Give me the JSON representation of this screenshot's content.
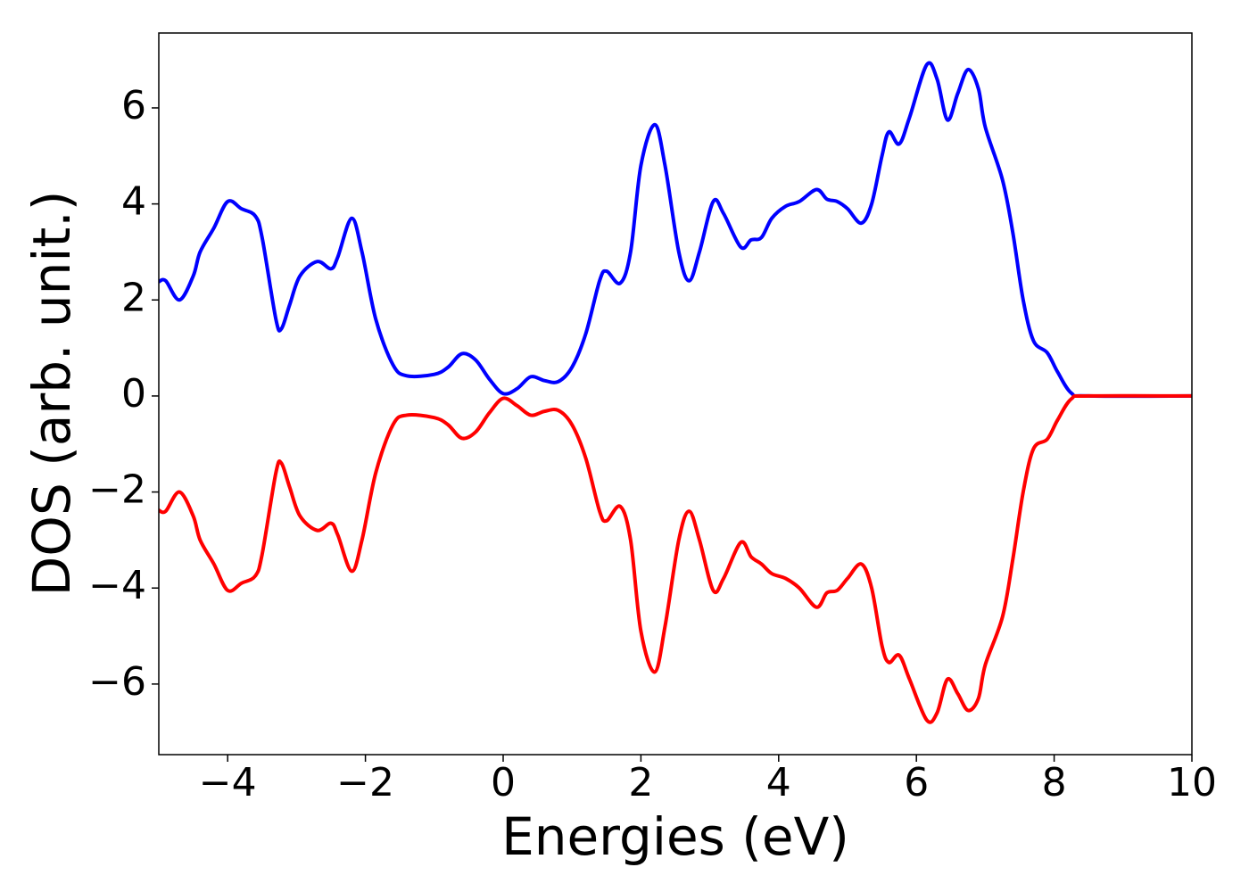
{
  "chart_data": {
    "type": "line",
    "xlabel": "Energies (eV)",
    "ylabel": "DOS (arb. unit.)",
    "x": [
      -5,
      -4.9,
      -4.7,
      -4.5,
      -4.4,
      -4.2,
      -4,
      -3.8,
      -3.6,
      -3.5,
      -3.3,
      -3.22,
      -3.1,
      -2.95,
      -2.7,
      -2.5,
      -2.4,
      -2.2,
      -2.05,
      -1.85,
      -1.6,
      -1.4,
      -1,
      -0.8,
      -0.6,
      -0.4,
      -0.2,
      0,
      0.2,
      0.4,
      0.6,
      0.8,
      1,
      1.2,
      1.4,
      1.5,
      1.7,
      1.85,
      2,
      2.2,
      2.35,
      2.55,
      2.7,
      2.85,
      3.05,
      3.2,
      3.45,
      3.6,
      3.75,
      3.9,
      4.1,
      4.3,
      4.55,
      4.7,
      4.85,
      5,
      5.2,
      5.35,
      5.5,
      5.6,
      5.75,
      5.9,
      6.15,
      6.3,
      6.45,
      6.6,
      6.75,
      6.9,
      7,
      7.25,
      7.4,
      7.55,
      7.7,
      7.9,
      8.05,
      8.25,
      8.5,
      10
    ],
    "series": [
      {
        "color": "#0000ff",
        "values": [
          2.38,
          2.4,
          2.0,
          2.5,
          3.0,
          3.5,
          4.05,
          3.9,
          3.75,
          3.3,
          1.6,
          1.4,
          1.9,
          2.5,
          2.8,
          2.65,
          2.9,
          3.7,
          3.0,
          1.6,
          0.65,
          0.42,
          0.45,
          0.6,
          0.88,
          0.75,
          0.35,
          0.05,
          0.15,
          0.4,
          0.32,
          0.3,
          0.6,
          1.3,
          2.4,
          2.6,
          2.35,
          3.0,
          4.8,
          5.65,
          4.8,
          3.0,
          2.4,
          3.0,
          4.05,
          3.8,
          3.1,
          3.25,
          3.3,
          3.7,
          3.95,
          4.05,
          4.3,
          4.1,
          4.05,
          3.9,
          3.6,
          4.0,
          5.0,
          5.5,
          5.25,
          5.8,
          6.9,
          6.6,
          5.75,
          6.3,
          6.8,
          6.4,
          5.6,
          4.5,
          3.4,
          2.0,
          1.15,
          0.9,
          0.5,
          0.06,
          0.0,
          0.0
        ]
      },
      {
        "color": "#ff0000",
        "values": [
          -2.38,
          -2.4,
          -2.0,
          -2.5,
          -3.0,
          -3.5,
          -4.05,
          -3.9,
          -3.75,
          -3.3,
          -1.6,
          -1.4,
          -1.9,
          -2.5,
          -2.8,
          -2.65,
          -2.9,
          -3.65,
          -3.0,
          -1.6,
          -0.6,
          -0.4,
          -0.45,
          -0.6,
          -0.88,
          -0.75,
          -0.35,
          -0.05,
          -0.2,
          -0.4,
          -0.32,
          -0.3,
          -0.6,
          -1.3,
          -2.4,
          -2.6,
          -2.3,
          -3.0,
          -4.9,
          -5.75,
          -4.8,
          -3.0,
          -2.4,
          -3.0,
          -4.05,
          -3.8,
          -3.05,
          -3.35,
          -3.5,
          -3.7,
          -3.8,
          -4.0,
          -4.4,
          -4.1,
          -4.05,
          -3.8,
          -3.5,
          -4.0,
          -5.2,
          -5.55,
          -5.4,
          -5.9,
          -6.75,
          -6.6,
          -5.9,
          -6.2,
          -6.55,
          -6.3,
          -5.6,
          -4.6,
          -3.4,
          -2.0,
          -1.1,
          -0.9,
          -0.5,
          -0.06,
          0.0,
          0.0
        ]
      }
    ],
    "xlim": [
      -5,
      10
    ],
    "xticks": [
      {
        "value": -4,
        "label": "−4"
      },
      {
        "value": -2,
        "label": "−2"
      },
      0,
      2,
      4,
      6,
      8,
      10
    ],
    "ylim": [
      -7.47,
      7.56
    ],
    "yticks": [
      {
        "value": -6,
        "label": "−6"
      },
      {
        "value": -4,
        "label": "−4"
      },
      {
        "value": -2,
        "label": "−2"
      },
      0,
      2,
      4,
      6
    ]
  }
}
